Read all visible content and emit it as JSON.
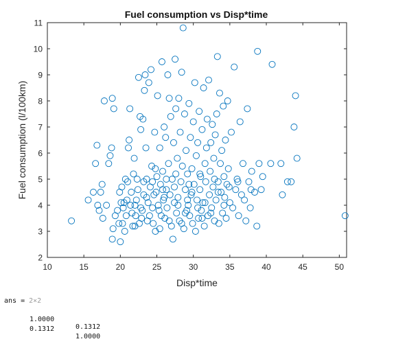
{
  "chart_data": {
    "type": "scatter",
    "title": "Fuel consumption vs Disp*time",
    "xlabel": "Disp*time",
    "ylabel": "Fuel consumption (l/100km)",
    "xlim": [
      10,
      51
    ],
    "ylim": [
      2,
      11
    ],
    "xticks": [
      10,
      15,
      20,
      25,
      30,
      35,
      40,
      45,
      50
    ],
    "yticks": [
      2,
      3,
      4,
      5,
      6,
      7,
      8,
      9,
      10,
      11
    ],
    "grid": false,
    "marker": "circle-open",
    "marker_color": "#0072BD",
    "series": [
      {
        "points": [
          [
            13.3,
            3.4
          ],
          [
            15.6,
            4.2
          ],
          [
            16.3,
            4.5
          ],
          [
            16.6,
            5.6
          ],
          [
            16.8,
            6.3
          ],
          [
            16.9,
            4.0
          ],
          [
            17.1,
            3.8
          ],
          [
            17.3,
            4.5
          ],
          [
            17.6,
            3.5
          ],
          [
            17.5,
            4.8
          ],
          [
            17.8,
            8.0
          ],
          [
            18.1,
            4.0
          ],
          [
            18.4,
            5.6
          ],
          [
            18.6,
            5.9
          ],
          [
            18.8,
            6.2
          ],
          [
            18.9,
            8.1
          ],
          [
            19.1,
            7.7
          ],
          [
            19.0,
            3.1
          ],
          [
            18.9,
            2.7
          ],
          [
            19.3,
            3.6
          ],
          [
            19.6,
            3.8
          ],
          [
            19.9,
            4.5
          ],
          [
            20.1,
            4.1
          ],
          [
            20.3,
            3.3
          ],
          [
            20.0,
            2.6
          ],
          [
            20.5,
            4.1
          ],
          [
            20.4,
            3.9
          ],
          [
            20.6,
            3.0
          ],
          [
            20.8,
            3.6
          ],
          [
            20.7,
            5.0
          ],
          [
            20.9,
            4.2
          ],
          [
            21.1,
            6.2
          ],
          [
            21.2,
            6.5
          ],
          [
            21.3,
            7.7
          ],
          [
            21.0,
            4.9
          ],
          [
            21.5,
            4.5
          ],
          [
            21.6,
            3.7
          ],
          [
            21.7,
            3.2
          ],
          [
            21.9,
            5.8
          ],
          [
            22.0,
            4.0
          ],
          [
            22.1,
            3.6
          ],
          [
            22.2,
            4.2
          ],
          [
            22.3,
            5.0
          ],
          [
            22.4,
            4.6
          ],
          [
            22.5,
            8.9
          ],
          [
            22.6,
            3.3
          ],
          [
            22.7,
            7.4
          ],
          [
            22.8,
            6.9
          ],
          [
            22.9,
            3.5
          ],
          [
            23.0,
            3.8
          ],
          [
            23.1,
            7.3
          ],
          [
            23.2,
            4.4
          ],
          [
            23.3,
            8.4
          ],
          [
            23.4,
            9.0
          ],
          [
            23.5,
            6.2
          ],
          [
            23.6,
            5.0
          ],
          [
            23.7,
            3.4
          ],
          [
            23.8,
            4.1
          ],
          [
            23.9,
            8.7
          ],
          [
            24.0,
            3.6
          ],
          [
            24.1,
            4.7
          ],
          [
            24.2,
            9.2
          ],
          [
            24.3,
            5.5
          ],
          [
            24.4,
            4.9
          ],
          [
            24.5,
            3.3
          ],
          [
            24.6,
            4.4
          ],
          [
            24.7,
            6.8
          ],
          [
            24.8,
            3.0
          ],
          [
            24.9,
            4.5
          ],
          [
            25.0,
            5.1
          ],
          [
            25.1,
            8.2
          ],
          [
            25.2,
            4.0
          ],
          [
            25.3,
            3.8
          ],
          [
            25.4,
            6.2
          ],
          [
            25.5,
            4.8
          ],
          [
            25.6,
            3.6
          ],
          [
            25.7,
            9.5
          ],
          [
            25.8,
            5.3
          ],
          [
            25.9,
            4.2
          ],
          [
            26.0,
            7.0
          ],
          [
            26.1,
            3.5
          ],
          [
            26.2,
            6.6
          ],
          [
            26.3,
            4.6
          ],
          [
            26.4,
            3.9
          ],
          [
            26.5,
            9.0
          ],
          [
            26.6,
            5.6
          ],
          [
            26.7,
            8.1
          ],
          [
            26.8,
            4.4
          ],
          [
            26.9,
            7.4
          ],
          [
            27.0,
            3.2
          ],
          [
            27.1,
            5.0
          ],
          [
            27.2,
            2.7
          ],
          [
            27.3,
            6.4
          ],
          [
            27.4,
            4.1
          ],
          [
            27.5,
            9.6
          ],
          [
            27.6,
            7.7
          ],
          [
            27.7,
            3.7
          ],
          [
            27.8,
            5.8
          ],
          [
            27.9,
            4.3
          ],
          [
            28.0,
            8.1
          ],
          [
            28.1,
            3.4
          ],
          [
            28.2,
            6.8
          ],
          [
            28.3,
            4.9
          ],
          [
            28.4,
            9.1
          ],
          [
            28.5,
            5.5
          ],
          [
            28.6,
            10.8
          ],
          [
            28.7,
            3.1
          ],
          [
            28.8,
            7.5
          ],
          [
            28.9,
            4.6
          ],
          [
            29.0,
            6.1
          ],
          [
            29.1,
            3.8
          ],
          [
            29.2,
            5.2
          ],
          [
            29.3,
            4.0
          ],
          [
            29.4,
            7.9
          ],
          [
            29.5,
            3.6
          ],
          [
            29.6,
            6.6
          ],
          [
            29.7,
            4.4
          ],
          [
            29.8,
            5.4
          ],
          [
            29.9,
            3.3
          ],
          [
            30.0,
            7.2
          ],
          [
            30.1,
            4.8
          ],
          [
            30.2,
            8.7
          ],
          [
            30.3,
            3.0
          ],
          [
            30.4,
            5.9
          ],
          [
            30.5,
            4.2
          ],
          [
            30.6,
            6.4
          ],
          [
            30.7,
            3.5
          ],
          [
            30.8,
            7.6
          ],
          [
            30.9,
            4.6
          ],
          [
            31.0,
            5.1
          ],
          [
            31.1,
            3.8
          ],
          [
            31.2,
            6.9
          ],
          [
            31.3,
            4.1
          ],
          [
            31.4,
            8.5
          ],
          [
            31.5,
            3.2
          ],
          [
            31.6,
            5.6
          ],
          [
            31.7,
            4.9
          ],
          [
            31.8,
            6.2
          ],
          [
            31.9,
            7.3
          ],
          [
            32.0,
            3.6
          ],
          [
            32.1,
            8.8
          ],
          [
            32.2,
            4.4
          ],
          [
            32.3,
            5.3
          ],
          [
            32.4,
            6.4
          ],
          [
            32.5,
            3.9
          ],
          [
            32.6,
            7.1
          ],
          [
            32.7,
            4.7
          ],
          [
            32.8,
            5.8
          ],
          [
            32.9,
            3.4
          ],
          [
            33.0,
            6.7
          ],
          [
            33.1,
            4.2
          ],
          [
            33.2,
            7.5
          ],
          [
            33.3,
            9.7
          ],
          [
            33.4,
            4.9
          ],
          [
            33.5,
            3.3
          ],
          [
            33.6,
            8.3
          ],
          [
            33.7,
            5.6
          ],
          [
            33.8,
            4.5
          ],
          [
            33.9,
            6.1
          ],
          [
            34.0,
            3.7
          ],
          [
            34.1,
            7.8
          ],
          [
            34.2,
            5.1
          ],
          [
            34.3,
            4.3
          ],
          [
            34.4,
            6.5
          ],
          [
            34.5,
            3.5
          ],
          [
            34.6,
            4.8
          ],
          [
            34.7,
            8.0
          ],
          [
            34.8,
            5.4
          ],
          [
            35.0,
            4.1
          ],
          [
            35.2,
            6.8
          ],
          [
            35.4,
            3.9
          ],
          [
            35.6,
            9.3
          ],
          [
            35.8,
            4.6
          ],
          [
            36.0,
            5.0
          ],
          [
            36.2,
            3.6
          ],
          [
            36.4,
            7.2
          ],
          [
            36.6,
            4.4
          ],
          [
            36.8,
            5.6
          ],
          [
            37.0,
            4.2
          ],
          [
            37.2,
            3.4
          ],
          [
            37.4,
            7.7
          ],
          [
            37.6,
            4.9
          ],
          [
            37.8,
            3.9
          ],
          [
            38.0,
            5.3
          ],
          [
            38.4,
            4.5
          ],
          [
            38.7,
            3.2
          ],
          [
            38.8,
            9.9
          ],
          [
            39.0,
            5.6
          ],
          [
            39.3,
            4.6
          ],
          [
            39.5,
            5.1
          ],
          [
            40.6,
            5.6
          ],
          [
            40.8,
            9.4
          ],
          [
            42.0,
            5.6
          ],
          [
            42.2,
            4.4
          ],
          [
            42.9,
            4.9
          ],
          [
            43.4,
            4.9
          ],
          [
            43.8,
            7.0
          ],
          [
            44.0,
            8.2
          ],
          [
            44.2,
            5.8
          ],
          [
            50.8,
            3.6
          ],
          [
            21.4,
            4.0
          ],
          [
            22.0,
            3.2
          ],
          [
            23.6,
            4.3
          ],
          [
            24.4,
            3.9
          ],
          [
            25.8,
            4.6
          ],
          [
            26.7,
            3.4
          ],
          [
            27.9,
            4.0
          ],
          [
            28.9,
            3.7
          ],
          [
            29.8,
            4.5
          ],
          [
            30.6,
            3.9
          ],
          [
            31.6,
            4.1
          ],
          [
            32.4,
            3.7
          ],
          [
            33.4,
            4.5
          ],
          [
            34.2,
            4.0
          ],
          [
            20.2,
            4.7
          ],
          [
            21.8,
            5.2
          ],
          [
            23.2,
            4.9
          ],
          [
            24.8,
            5.4
          ],
          [
            26.3,
            5.0
          ],
          [
            27.6,
            5.2
          ],
          [
            29.4,
            4.8
          ],
          [
            30.9,
            5.2
          ],
          [
            32.9,
            5.0
          ],
          [
            34.9,
            4.7
          ],
          [
            19.8,
            3.3
          ],
          [
            22.8,
            3.9
          ],
          [
            25.4,
            3.1
          ],
          [
            28.4,
            3.3
          ],
          [
            31.2,
            3.5
          ],
          [
            36.1,
            4.9
          ],
          [
            37.9,
            4.6
          ],
          [
            26.0,
            4.3
          ],
          [
            27.4,
            4.7
          ],
          [
            29.2,
            4.2
          ]
        ]
      }
    ]
  },
  "console": {
    "prompt": "ans =",
    "dims": "2×2",
    "matrix": [
      [
        "1.0000",
        "0.1312"
      ],
      [
        "0.1312",
        "1.0000"
      ]
    ]
  }
}
